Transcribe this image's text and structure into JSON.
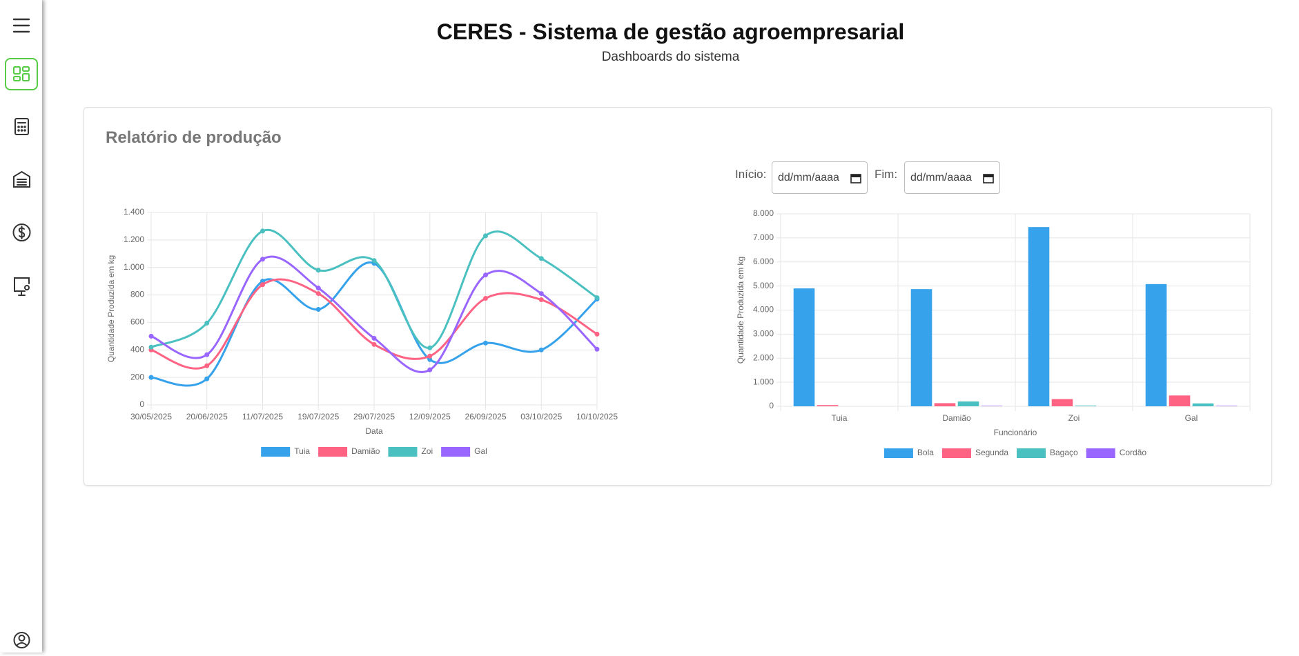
{
  "header": {
    "title": "CERES - Sistema de gestão agroempresarial",
    "subtitle": "Dashboards do sistema"
  },
  "card": {
    "title": "Relatório de produção"
  },
  "filters": {
    "start_label": "Início:",
    "start_placeholder": "dd/mm/aaaa",
    "end_label": "Fim:",
    "end_placeholder": "dd/mm/aaaa"
  },
  "chart_data": [
    {
      "type": "line",
      "x_label": "Data",
      "y_label": "Quantidade Produzida em kg",
      "categories": [
        "30/05/2025",
        "20/06/2025",
        "11/07/2025",
        "19/07/2025",
        "29/07/2025",
        "12/09/2025",
        "26/09/2025",
        "03/10/2025",
        "10/10/2025"
      ],
      "series": [
        {
          "name": "Tuia",
          "color": "#36a2eb",
          "values": [
            200,
            190,
            900,
            695,
            1030,
            330,
            450,
            400,
            770
          ]
        },
        {
          "name": "Damião",
          "color": "#ff6384",
          "values": [
            400,
            285,
            875,
            810,
            440,
            355,
            775,
            765,
            515
          ]
        },
        {
          "name": "Zoi",
          "color": "#4bc0c0",
          "values": [
            420,
            595,
            1265,
            980,
            1050,
            415,
            1230,
            1065,
            780
          ]
        },
        {
          "name": "Gal",
          "color": "#9966ff",
          "values": [
            500,
            365,
            1060,
            850,
            485,
            255,
            945,
            810,
            405
          ]
        }
      ],
      "ylim": [
        0,
        1400
      ],
      "yticks": [
        0,
        200,
        400,
        600,
        800,
        {
          "value": 1000,
          "label": "1.000"
        },
        {
          "value": 1200,
          "label": "1.200"
        },
        {
          "value": 1400,
          "label": "1.400"
        }
      ],
      "grid": true,
      "legend": "bottom"
    },
    {
      "type": "bar",
      "x_label": "Funcionário",
      "y_label": "Quantidade Produzida em kg",
      "categories": [
        "Tuia",
        "Damião",
        "Zoi",
        "Gal"
      ],
      "series": [
        {
          "name": "Bola",
          "color": "#36a2eb",
          "values": [
            4900,
            4870,
            7450,
            5080
          ]
        },
        {
          "name": "Segunda",
          "color": "#ff6384",
          "values": [
            50,
            130,
            300,
            450
          ]
        },
        {
          "name": "Bagaço",
          "color": "#4bc0c0",
          "values": [
            0,
            200,
            30,
            120
          ]
        },
        {
          "name": "Cordão",
          "color": "#9966ff",
          "values": [
            0,
            20,
            0,
            20
          ]
        }
      ],
      "ylim": [
        0,
        8000
      ],
      "yticks": [
        0,
        {
          "value": 1000,
          "label": "1.000"
        },
        {
          "value": 2000,
          "label": "2.000"
        },
        {
          "value": 3000,
          "label": "3.000"
        },
        {
          "value": 4000,
          "label": "4.000"
        },
        {
          "value": 5000,
          "label": "5.000"
        },
        {
          "value": 6000,
          "label": "6.000"
        },
        {
          "value": 7000,
          "label": "7.000"
        },
        {
          "value": 8000,
          "label": "8.000"
        }
      ],
      "grid": true,
      "legend": "bottom"
    }
  ]
}
